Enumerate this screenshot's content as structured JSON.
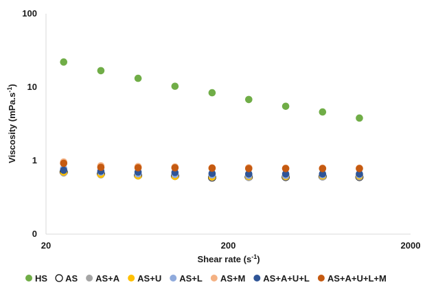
{
  "chart_data": {
    "type": "scatter",
    "title": "",
    "xlabel": "Shear rate (s",
    "xlabel_sup": "-1",
    "xlabel_end": ")",
    "ylabel": "Viscosity (mPa.s",
    "ylabel_sup": "-1",
    "ylabel_end": ")",
    "x_scale": "log",
    "y_scale": "log",
    "xlim": [
      20,
      2000
    ],
    "ylim": [
      0.1,
      100
    ],
    "x_ticks": [
      20,
      200,
      2000
    ],
    "x_tick_labels": [
      "20",
      "200",
      "2000"
    ],
    "y_ticks": [
      0.1,
      1,
      10,
      100
    ],
    "y_tick_labels": [
      "0",
      "1",
      "10",
      "100"
    ],
    "grid": false,
    "legend_position": "bottom",
    "x": [
      25,
      40,
      64,
      102,
      163,
      259,
      413,
      658,
      1048
    ],
    "series": [
      {
        "name": "HS",
        "color": "#70ad47",
        "hollow": false,
        "values": [
          22,
          16.8,
          13.2,
          10.3,
          8.4,
          6.8,
          5.5,
          4.6,
          3.8
        ]
      },
      {
        "name": "AS",
        "color": "#000000",
        "hollow": true,
        "values": [
          0.7,
          0.66,
          0.63,
          0.62,
          0.59,
          0.6,
          0.6,
          0.61,
          0.6
        ]
      },
      {
        "name": "AS+A",
        "color": "#a5a5a5",
        "hollow": false,
        "values": [
          0.68,
          0.64,
          0.62,
          0.61,
          0.59,
          0.59,
          0.6,
          0.6,
          0.6
        ]
      },
      {
        "name": "AS+U",
        "color": "#ffc000",
        "hollow": false,
        "values": [
          0.7,
          0.65,
          0.62,
          0.61,
          0.6,
          0.61,
          0.61,
          0.62,
          0.62
        ]
      },
      {
        "name": "AS+L",
        "color": "#8faadc",
        "hollow": false,
        "values": [
          0.78,
          0.7,
          0.66,
          0.65,
          0.64,
          0.63,
          0.63,
          0.64,
          0.64
        ]
      },
      {
        "name": "AS+M",
        "color": "#f4b183",
        "hollow": false,
        "values": [
          0.96,
          0.85,
          0.83,
          0.82,
          0.8,
          0.8,
          0.79,
          0.79,
          0.79
        ]
      },
      {
        "name": "AS+A+U+L",
        "color": "#2f5597",
        "hollow": false,
        "values": [
          0.74,
          0.72,
          0.7,
          0.69,
          0.67,
          0.66,
          0.66,
          0.66,
          0.66
        ]
      },
      {
        "name": "AS+A+U+L+M",
        "color": "#c55a11",
        "hollow": false,
        "values": [
          0.92,
          0.81,
          0.8,
          0.8,
          0.79,
          0.78,
          0.78,
          0.78,
          0.78
        ]
      }
    ]
  }
}
